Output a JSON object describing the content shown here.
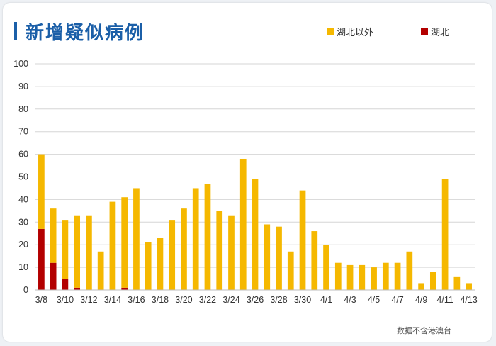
{
  "page": {
    "footnote": "数据不含港澳台"
  },
  "chart_data": {
    "type": "bar",
    "stacked": true,
    "title": "新增疑似病例",
    "categories": [
      "3/8",
      "3/9",
      "3/10",
      "3/11",
      "3/12",
      "3/13",
      "3/14",
      "3/15",
      "3/16",
      "3/17",
      "3/18",
      "3/19",
      "3/20",
      "3/21",
      "3/22",
      "3/23",
      "3/24",
      "3/25",
      "3/26",
      "3/27",
      "3/28",
      "3/29",
      "3/30",
      "3/31",
      "4/1",
      "4/2",
      "4/3",
      "4/4",
      "4/5",
      "4/6",
      "4/7",
      "4/8",
      "4/9",
      "4/10",
      "4/11",
      "4/12",
      "4/13"
    ],
    "tick_labels": [
      "3/8",
      "3/10",
      "3/12",
      "3/14",
      "3/16",
      "3/18",
      "3/20",
      "3/22",
      "3/24",
      "3/26",
      "3/28",
      "3/30",
      "4/1",
      "4/3",
      "4/5",
      "4/7",
      "4/9",
      "4/11",
      "4/13"
    ],
    "series": [
      {
        "name": "湖北",
        "color": "#b30000",
        "values": [
          27,
          12,
          5,
          1,
          0,
          0,
          0,
          1,
          0,
          0,
          0,
          0,
          0,
          0,
          0,
          0,
          0,
          0,
          0,
          0,
          0,
          0,
          0,
          0,
          0,
          0,
          0,
          0,
          0,
          0,
          0,
          0,
          0,
          0,
          0,
          0,
          0
        ]
      },
      {
        "name": "湖北以外",
        "color": "#f5b800",
        "values": [
          33,
          24,
          26,
          32,
          33,
          17,
          39,
          40,
          45,
          21,
          23,
          31,
          36,
          45,
          47,
          35,
          33,
          58,
          49,
          29,
          28,
          17,
          44,
          26,
          20,
          12,
          11,
          11,
          10,
          12,
          12,
          17,
          3,
          8,
          49,
          6,
          3
        ]
      }
    ],
    "totals": [
      60,
      36,
      31,
      33,
      33,
      17,
      39,
      41,
      45,
      21,
      23,
      31,
      36,
      45,
      47,
      35,
      33,
      58,
      49,
      29,
      28,
      17,
      44,
      26,
      20,
      12,
      11,
      11,
      10,
      12,
      12,
      17,
      3,
      8,
      49,
      6,
      3
    ],
    "ylim": [
      0,
      100
    ],
    "yticks": [
      0,
      10,
      20,
      30,
      40,
      50,
      60,
      70,
      80,
      90,
      100
    ],
    "grid": true,
    "legend_position": "top-right"
  }
}
